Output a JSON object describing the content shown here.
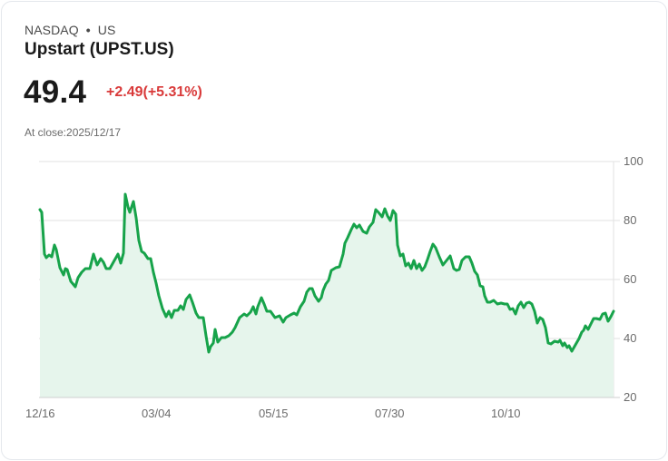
{
  "header": {
    "exchange": "NASDAQ",
    "separator": "•",
    "region": "US",
    "title": "Upstart (UPST.US)",
    "price": "49.4",
    "change": "+2.49(+5.31%)",
    "close_label": "At close:2025/12/17"
  },
  "colors": {
    "line": "#17a34a",
    "fill": "#e6f5ec",
    "change_negative_or_up_red": "#d93a3a",
    "grid": "#e2e2e2"
  },
  "chart_data": {
    "type": "area",
    "title": "Upstart (UPST.US)",
    "xlabel": "",
    "ylabel": "",
    "ylim": [
      20,
      100
    ],
    "yticks": [
      100,
      80,
      60,
      40,
      20
    ],
    "xticks": [
      "12/16",
      "03/04",
      "05/15",
      "07/30",
      "10/10"
    ],
    "grid": "horizontal",
    "legend": "none",
    "y_axis_position": "right",
    "series": [
      {
        "name": "UPST.US close",
        "values": [
          83.7,
          82.8,
          68.6,
          67.4,
          68.3,
          67.7,
          71.7,
          70.2,
          64.0,
          61.5,
          63.7,
          59.7,
          57.8,
          60.9,
          62.8,
          64.0,
          64.0,
          68.9,
          65.2,
          67.4,
          66.2,
          64.0,
          64.0,
          66.8,
          68.9,
          65.8,
          69.2,
          89.2,
          84.9,
          83.1,
          86.8,
          81.2,
          73.5,
          69.8,
          69.2,
          67.4,
          67.4,
          62.8,
          59.1,
          54.8,
          50.5,
          47.7,
          49.5,
          47.4,
          49.8,
          49.8,
          51.4,
          50.2,
          53.5,
          55.1,
          52.6,
          48.9,
          47.4,
          47.4,
          41.2,
          35.7,
          37.5,
          38.8,
          43.4,
          39.1,
          40.6,
          40.6,
          41.2,
          42.5,
          44.0,
          47.4,
          48.6,
          48.0,
          49.2,
          51.1,
          48.6,
          51.1,
          54.2,
          52.0,
          49.5,
          49.5,
          47.4,
          48.0,
          45.8,
          47.4,
          48.3,
          48.9,
          48.3,
          51.1,
          52.9,
          56.0,
          57.2,
          57.2,
          54.8,
          52.9,
          54.2,
          56.6,
          58.8,
          60.0,
          63.4,
          64.3,
          64.6,
          68.9,
          72.6,
          74.5,
          77.2,
          79.1,
          77.8,
          78.8,
          76.6,
          76.0,
          78.2,
          79.7,
          84.0,
          83.1,
          81.5,
          84.3,
          81.8,
          80.3,
          83.7,
          82.5,
          72.0,
          68.3,
          68.9,
          64.9,
          65.8,
          64.0,
          66.8,
          64.0,
          65.5,
          63.4,
          64.6,
          67.1,
          69.8,
          72.3,
          71.1,
          68.0,
          65.2,
          66.8,
          68.3,
          64.0,
          63.4,
          63.7,
          66.8,
          68.0,
          68.0,
          65.8,
          63.1,
          61.8,
          58.2,
          57.8,
          54.8,
          52.6,
          52.6,
          53.2,
          52.0,
          52.3,
          52.0,
          52.0,
          50.2,
          50.5,
          48.6,
          51.4,
          52.6,
          50.8,
          52.3,
          52.6,
          52.0,
          49.5,
          45.5,
          47.4,
          46.8,
          44.0,
          38.8,
          38.5,
          39.4,
          39.1,
          39.7,
          37.8,
          38.8,
          37.2,
          37.8,
          35.9,
          38.0,
          40.1,
          42.2,
          42.8,
          44.3,
          43.1,
          44.9,
          46.8,
          46.8,
          46.5,
          48.3,
          48.6,
          45.8,
          47.4,
          49.4
        ]
      }
    ],
    "pixel_path": "44,231 46,234 49,280 51,284 54,281 57,283 60,270 62,275 66,295 70,303 72,296 74,297 78,310 83,316 86,306 90,300 94,296 99,296 103,280 107,292 111,285 114,289 117,296 121,296 126,287 130,280 133,290 136,279 138,214 141,228 143,234 147,222 150,240 153,265 156,277 159,279 163,285 166,285 169,300 172,312 175,326 179,340 183,349 186,343 189,350 192,342 196,342 199,337 202,341 205,330 209,325 212,333 216,345 219,350 224,350 227,370 230,388 232,382 235,378 237,363 240,377 244,372 248,372 252,370 256,366 259,361 264,350 269,346 272,348 276,344 279,338 282,346 284,338 288,328 291,335 294,343 298,343 303,350 308,348 312,355 315,350 320,347 324,345 327,347 331,338 335,332 338,322 341,318 344,318 347,326 351,332 354,328 356,320 359,313 362,309 365,298 370,295 374,294 378,280 380,268 383,262 387,253 390,247 393,251 396,248 400,255 404,257 407,250 411,245 414,231 417,234 421,239 424,230 427,238 430,243 433,232 436,236 438,270 441,282 444,280 447,293 450,290 453,296 456,287 459,296 462,291 465,298 468,294 471,286 474,277 477,269 480,273 484,283 488,292 492,287 496,282 500,296 503,298 506,297 509,287 513,283 517,283 520,290 523,299 526,303 529,315 532,316 534,326 537,333 540,333 544,331 548,335 552,334 556,335 559,335 562,341 565,340 568,346 571,337 574,333 577,339 580,334 583,333 586,335 589,343 592,356 595,350 598,352 601,361 604,378 607,379 611,376 615,377 617,375 620,381 622,378 625,383 627,381 630,387 634,380 638,373 641,366 643,364 645,359 648,363 651,357 654,351 657,351 661,352 664,346 667,345 670,354 673,349 676,343"
  }
}
